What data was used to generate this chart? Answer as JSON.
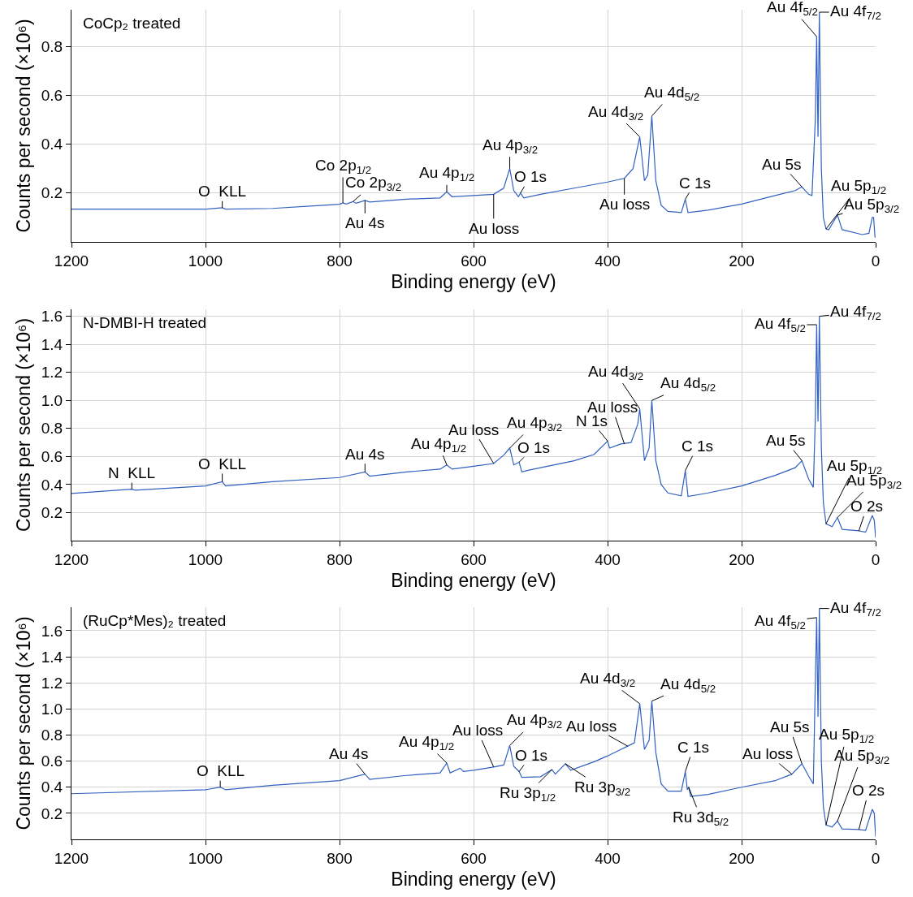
{
  "chart_data": [
    {
      "type": "line",
      "title": "CoCp₂ treated",
      "xlabel": "Binding energy (eV)",
      "ylabel": "Counts per second (×10⁶)",
      "x": [
        1200,
        1000,
        975,
        970,
        900,
        800,
        795,
        790,
        780,
        775,
        762,
        755,
        700,
        650,
        640,
        632,
        600,
        570,
        555,
        546,
        540,
        533,
        530,
        525,
        500,
        450,
        400,
        375,
        362,
        352,
        345,
        340,
        334,
        328,
        320,
        310,
        290,
        284,
        280,
        250,
        200,
        150,
        120,
        110,
        100,
        95,
        90,
        88,
        86,
        84,
        81,
        78,
        74,
        70,
        57,
        50,
        20,
        10,
        5,
        3,
        1,
        0
      ],
      "series": [
        {
          "color": "#3060c0",
          "values": [
            0.134,
            0.134,
            0.14,
            0.134,
            0.137,
            0.154,
            0.16,
            0.155,
            0.165,
            0.158,
            0.17,
            0.163,
            0.175,
            0.18,
            0.205,
            0.185,
            0.19,
            0.195,
            0.22,
            0.3,
            0.21,
            0.185,
            0.2,
            0.18,
            0.195,
            0.22,
            0.245,
            0.26,
            0.3,
            0.43,
            0.25,
            0.275,
            0.515,
            0.25,
            0.15,
            0.125,
            0.12,
            0.175,
            0.12,
            0.13,
            0.155,
            0.19,
            0.21,
            0.225,
            0.195,
            0.19,
            0.5,
            0.84,
            0.43,
            0.94,
            0.3,
            0.1,
            0.053,
            0.05,
            0.11,
            0.05,
            0.03,
            0.035,
            0.1,
            0.1,
            0.02,
            0.02
          ]
        }
      ],
      "xlim": [
        1200,
        0
      ],
      "xticks": [
        1200,
        1000,
        800,
        600,
        400,
        200,
        0
      ],
      "ylim": [
        0,
        0.95
      ],
      "yticks": [
        0.2,
        0.4,
        0.6,
        0.8
      ],
      "grid": true,
      "annotations": [
        {
          "text": "O  KLL",
          "x": 975,
          "y": 0.14
        },
        {
          "text": "Co 2p$_{1/2}$",
          "x": 795,
          "y": 0.16
        },
        {
          "text": "Co 2p$_{3/2}$",
          "x": 780,
          "y": 0.165
        },
        {
          "text": "Au 4s",
          "x": 762,
          "y": 0.17
        },
        {
          "text": "Au 4p$_{1/2}$",
          "x": 640,
          "y": 0.205
        },
        {
          "text": "Au loss",
          "x": 570,
          "y": 0.195
        },
        {
          "text": "Au 4p$_{3/2}$",
          "x": 546,
          "y": 0.3
        },
        {
          "text": "O 1s",
          "x": 530,
          "y": 0.2
        },
        {
          "text": "Au loss",
          "x": 375,
          "y": 0.26
        },
        {
          "text": "Au 4d$_{3/2}$",
          "x": 352,
          "y": 0.43
        },
        {
          "text": "Au 4d$_{5/2}$",
          "x": 334,
          "y": 0.515
        },
        {
          "text": "C 1s",
          "x": 284,
          "y": 0.175
        },
        {
          "text": "Au 5s",
          "x": 110,
          "y": 0.225
        },
        {
          "text": "Au 4f$_{5/2}$",
          "x": 88,
          "y": 0.84
        },
        {
          "text": "Au 4f$_{7/2}$",
          "x": 84,
          "y": 0.94
        },
        {
          "text": "Au 5p$_{1/2}$",
          "x": 74,
          "y": 0.053
        },
        {
          "text": "Au 5p$_{3/2}$",
          "x": 57,
          "y": 0.11
        }
      ]
    },
    {
      "type": "line",
      "title": "N-DMBI-H treated",
      "xlabel": "Binding energy (eV)",
      "ylabel": "Counts per second (×10⁶)",
      "x": [
        1200,
        1110,
        1105,
        1000,
        975,
        970,
        900,
        800,
        762,
        755,
        700,
        650,
        640,
        632,
        600,
        570,
        555,
        546,
        540,
        532,
        528,
        520,
        500,
        450,
        420,
        400,
        397,
        380,
        365,
        355,
        352,
        345,
        338,
        334,
        328,
        320,
        310,
        290,
        284,
        280,
        250,
        200,
        150,
        120,
        110,
        100,
        93,
        90,
        88,
        86,
        84,
        81,
        78,
        74,
        65,
        57,
        50,
        25,
        15,
        5,
        2,
        0
      ],
      "series": [
        {
          "color": "#3060c0",
          "values": [
            0.337,
            0.367,
            0.36,
            0.39,
            0.42,
            0.39,
            0.42,
            0.45,
            0.49,
            0.46,
            0.49,
            0.51,
            0.54,
            0.51,
            0.53,
            0.55,
            0.61,
            0.66,
            0.54,
            0.56,
            0.49,
            0.5,
            0.52,
            0.57,
            0.615,
            0.71,
            0.66,
            0.69,
            0.7,
            0.83,
            0.94,
            0.57,
            0.66,
            1.0,
            0.57,
            0.4,
            0.34,
            0.32,
            0.5,
            0.315,
            0.34,
            0.39,
            0.465,
            0.52,
            0.57,
            0.44,
            0.38,
            0.87,
            1.54,
            0.85,
            1.6,
            0.66,
            0.27,
            0.12,
            0.1,
            0.165,
            0.08,
            0.07,
            0.06,
            0.18,
            0.145,
            0.02
          ]
        }
      ],
      "xlim": [
        1200,
        0
      ],
      "xticks": [
        1200,
        1000,
        800,
        600,
        400,
        200,
        0
      ],
      "ylim": [
        0,
        1.65
      ],
      "yticks": [
        0.2,
        0.4,
        0.6,
        0.8,
        {
          "value": 1,
          "label": "1.0"
        },
        1.2,
        1.4,
        1.6
      ],
      "grid": true,
      "annotations": [
        {
          "text": "N  KLL",
          "x": 1110,
          "y": 0.367
        },
        {
          "text": "O  KLL",
          "x": 975,
          "y": 0.42
        },
        {
          "text": "Au 4s",
          "x": 762,
          "y": 0.49
        },
        {
          "text": "Au 4p$_{1/2}$",
          "x": 640,
          "y": 0.54
        },
        {
          "text": "Au loss",
          "x": 570,
          "y": 0.55
        },
        {
          "text": "Au 4p$_{3/2}$",
          "x": 546,
          "y": 0.66
        },
        {
          "text": "O 1s",
          "x": 532,
          "y": 0.56
        },
        {
          "text": "N 1s",
          "x": 400,
          "y": 0.71
        },
        {
          "text": "Au loss",
          "x": 375,
          "y": 0.69
        },
        {
          "text": "Au 4d$_{3/2}$",
          "x": 352,
          "y": 0.94
        },
        {
          "text": "Au 4d$_{5/2}$",
          "x": 334,
          "y": 1.0
        },
        {
          "text": "C 1s",
          "x": 284,
          "y": 0.5
        },
        {
          "text": "Au 5s",
          "x": 110,
          "y": 0.57
        },
        {
          "text": "Au 4f$_{5/2}$",
          "x": 88,
          "y": 1.54
        },
        {
          "text": "Au 4f$_{7/2}$",
          "x": 84,
          "y": 1.6
        },
        {
          "text": "Au 5p$_{1/2}$",
          "x": 74,
          "y": 0.12
        },
        {
          "text": "Au 5p$_{3/2}$",
          "x": 57,
          "y": 0.165
        },
        {
          "text": "O 2s",
          "x": 25,
          "y": 0.07
        }
      ]
    },
    {
      "type": "line",
      "title": "(RuCp*Mes)₂ treated",
      "xlabel": "Binding energy (eV)",
      "ylabel": "Counts per second (×10⁶)",
      "x": [
        1200,
        1000,
        978,
        970,
        900,
        800,
        762,
        755,
        700,
        650,
        640,
        635,
        620,
        615,
        600,
        570,
        555,
        546,
        540,
        532,
        528,
        500,
        483,
        478,
        463,
        455,
        420,
        400,
        370,
        360,
        352,
        345,
        338,
        334,
        328,
        320,
        310,
        290,
        284,
        281,
        279,
        276,
        250,
        200,
        150,
        125,
        110,
        100,
        93,
        90,
        88,
        86,
        84,
        81,
        78,
        74,
        65,
        57,
        50,
        25,
        15,
        5,
        2,
        0
      ],
      "series": [
        {
          "color": "#3060c0",
          "values": [
            0.35,
            0.38,
            0.4,
            0.38,
            0.415,
            0.45,
            0.5,
            0.46,
            0.49,
            0.51,
            0.585,
            0.51,
            0.545,
            0.52,
            0.53,
            0.555,
            0.57,
            0.72,
            0.56,
            0.52,
            0.475,
            0.48,
            0.535,
            0.5,
            0.58,
            0.53,
            0.595,
            0.64,
            0.715,
            0.74,
            1.04,
            0.69,
            0.76,
            1.06,
            0.665,
            0.425,
            0.37,
            0.37,
            0.52,
            0.38,
            0.4,
            0.33,
            0.345,
            0.4,
            0.45,
            0.5,
            0.58,
            0.485,
            0.425,
            1.2,
            1.7,
            0.94,
            1.77,
            0.6,
            0.25,
            0.11,
            0.095,
            0.14,
            0.08,
            0.075,
            0.07,
            0.23,
            0.2,
            0.02
          ]
        }
      ],
      "xlim": [
        1200,
        0
      ],
      "xticks": [
        1200,
        1000,
        800,
        600,
        400,
        200,
        0
      ],
      "ylim": [
        0,
        1.78
      ],
      "yticks": [
        0.2,
        0.4,
        0.6,
        0.8,
        {
          "value": 1,
          "label": "1.0"
        },
        1.2,
        1.4,
        1.6
      ],
      "grid": true,
      "annotations": [
        {
          "text": "O  KLL",
          "x": 978,
          "y": 0.4
        },
        {
          "text": "Au 4s",
          "x": 762,
          "y": 0.5
        },
        {
          "text": "Au 4p$_{1/2}$",
          "x": 640,
          "y": 0.585
        },
        {
          "text": "Au loss",
          "x": 570,
          "y": 0.555
        },
        {
          "text": "Au 4p$_{3/2}$",
          "x": 546,
          "y": 0.72
        },
        {
          "text": "O 1s",
          "x": 532,
          "y": 0.52
        },
        {
          "text": "Ru 3p$_{1/2}$",
          "x": 483,
          "y": 0.535
        },
        {
          "text": "Ru 3p$_{3/2}$",
          "x": 463,
          "y": 0.58
        },
        {
          "text": "Au loss",
          "x": 370,
          "y": 0.715
        },
        {
          "text": "Au 4d$_{3/2}$",
          "x": 352,
          "y": 1.04
        },
        {
          "text": "Au 4d$_{5/2}$",
          "x": 334,
          "y": 1.06
        },
        {
          "text": "C 1s",
          "x": 284,
          "y": 0.52
        },
        {
          "text": "Ru 3d$_{5/2}$",
          "x": 279,
          "y": 0.4
        },
        {
          "text": "Au loss",
          "x": 125,
          "y": 0.5
        },
        {
          "text": "Au 5s",
          "x": 110,
          "y": 0.58
        },
        {
          "text": "Au 4f$_{5/2}$",
          "x": 88,
          "y": 1.7
        },
        {
          "text": "Au 4f$_{7/2}$",
          "x": 84,
          "y": 1.77
        },
        {
          "text": "Au 5p$_{1/2}$",
          "x": 74,
          "y": 0.11
        },
        {
          "text": "Au 5p$_{3/2}$",
          "x": 57,
          "y": 0.14
        },
        {
          "text": "O 2s",
          "x": 25,
          "y": 0.075
        }
      ]
    }
  ]
}
